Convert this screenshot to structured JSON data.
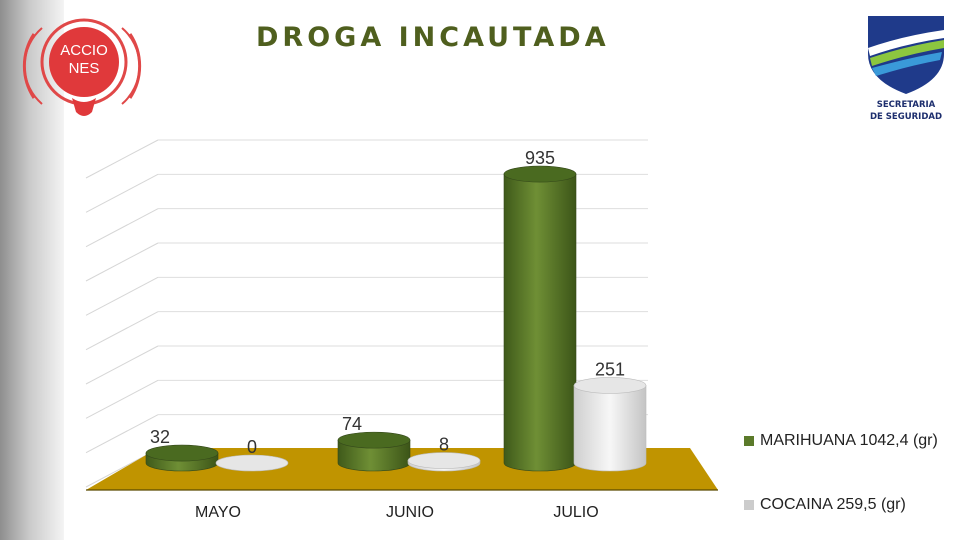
{
  "title": "DROGA INCAUTADA",
  "logos": {
    "left_text": [
      "ACCIO",
      "NES"
    ],
    "right_text": [
      "SECRETARIA",
      "DE SEGURIDAD"
    ]
  },
  "colors": {
    "marihuana": "#5b7a2a",
    "cocaina": "#d4d4d4",
    "floor": "#c09400",
    "title": "#4f5f1e"
  },
  "legend": [
    {
      "label": "MARIHUANA  1042,4 (gr)",
      "color": "#5b7a2a"
    },
    {
      "label": "COCAINA  259,5 (gr)",
      "color": "#cccccc"
    }
  ],
  "chart_data": {
    "type": "bar",
    "title": "DROGA INCAUTADA",
    "categories": [
      "MAYO",
      "JUNIO",
      "JULIO"
    ],
    "series": [
      {
        "name": "MARIHUANA",
        "values": [
          32,
          74,
          935
        ],
        "labels": [
          "32",
          "74",
          "935"
        ]
      },
      {
        "name": "COCAINA",
        "values": [
          0,
          8,
          251
        ],
        "labels": [
          "0",
          "8",
          "251"
        ]
      }
    ],
    "ylim": [
      0,
      1000
    ],
    "grid": true,
    "legend_position": "right"
  }
}
